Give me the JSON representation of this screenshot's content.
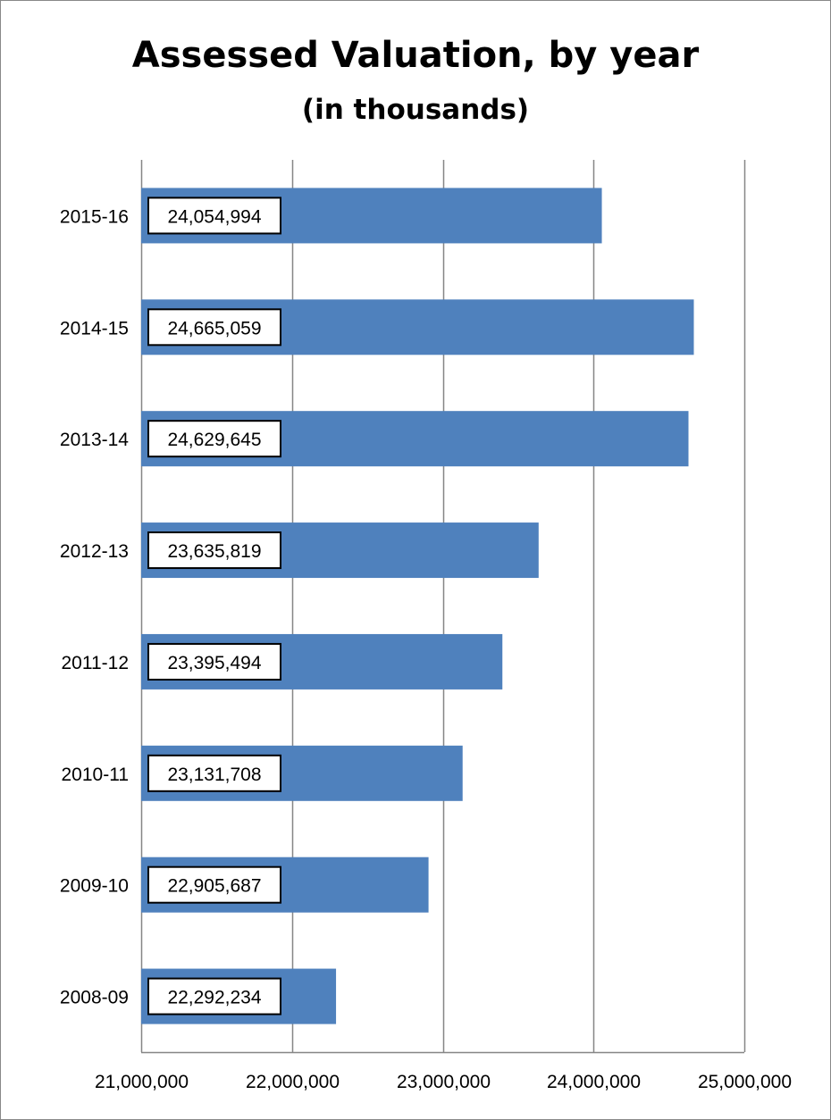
{
  "chart_data": {
    "type": "bar",
    "orientation": "horizontal",
    "title": "Assessed Valuation, by year",
    "subtitle": "(in thousands)",
    "categories": [
      "2015-16",
      "2014-15",
      "2013-14",
      "2012-13",
      "2011-12",
      "2010-11",
      "2009-10",
      "2008-09"
    ],
    "values": [
      24054994,
      24665059,
      24629645,
      23635819,
      23395494,
      23131708,
      22905687,
      22292234
    ],
    "data_labels": [
      "24,054,994",
      "24,665,059",
      "24,629,645",
      "23,635,819",
      "23,395,494",
      "23,131,708",
      "22,905,687",
      "22,292,234"
    ],
    "xlim": [
      21000000,
      25000000
    ],
    "x_ticks": [
      21000000,
      22000000,
      23000000,
      24000000,
      25000000
    ],
    "x_tick_labels": [
      "21,000,000",
      "22,000,000",
      "23,000,000",
      "24,000,000",
      "25,000,000"
    ],
    "xlabel": "",
    "ylabel": "",
    "grid": "vertical",
    "legend": "none",
    "bar_color": "#4F81BD",
    "gridline_color": "#868686"
  }
}
